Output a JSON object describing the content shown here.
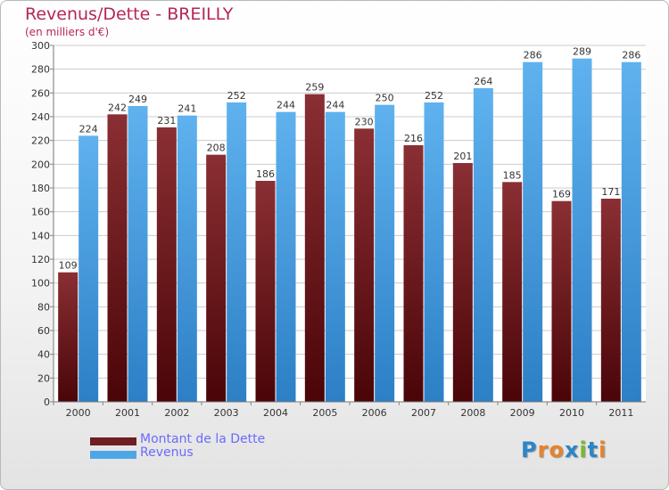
{
  "title": "Revenus/Dette - BREILLY",
  "subtitle": "(en milliers d'€)",
  "chart_data": {
    "type": "bar",
    "categories": [
      "2000",
      "2001",
      "2002",
      "2003",
      "2004",
      "2005",
      "2006",
      "2007",
      "2008",
      "2009",
      "2010",
      "2011"
    ],
    "series": [
      {
        "name": "Montant de la Dette",
        "color": "#6e1f22",
        "values": [
          109,
          242,
          231,
          208,
          186,
          259,
          230,
          216,
          201,
          185,
          169,
          171
        ]
      },
      {
        "name": "Revenus",
        "color": "#4fa6e6",
        "values": [
          224,
          249,
          241,
          252,
          244,
          244,
          250,
          252,
          264,
          286,
          289,
          286
        ]
      }
    ],
    "ylim": [
      0,
      300
    ],
    "yticks": [
      0,
      20,
      40,
      60,
      80,
      100,
      120,
      140,
      160,
      180,
      200,
      220,
      240,
      260,
      280,
      300
    ],
    "grid": true,
    "legend_position": "bottom-left"
  },
  "legend": [
    {
      "label": "Montant de la Dette",
      "color": "#6e1f22"
    },
    {
      "label": "Revenus",
      "color": "#4fa6e6"
    }
  ],
  "logo": {
    "letters": [
      {
        "ch": "P",
        "color": "#2a86c8"
      },
      {
        "ch": "r",
        "color": "#e8822a"
      },
      {
        "ch": "o",
        "color": "#e8822a"
      },
      {
        "ch": "x",
        "color": "#2a86c8"
      },
      {
        "ch": "i",
        "color": "#7cb82f"
      },
      {
        "ch": "t",
        "color": "#2a86c8"
      },
      {
        "ch": "i",
        "color": "#e8822a"
      }
    ]
  }
}
